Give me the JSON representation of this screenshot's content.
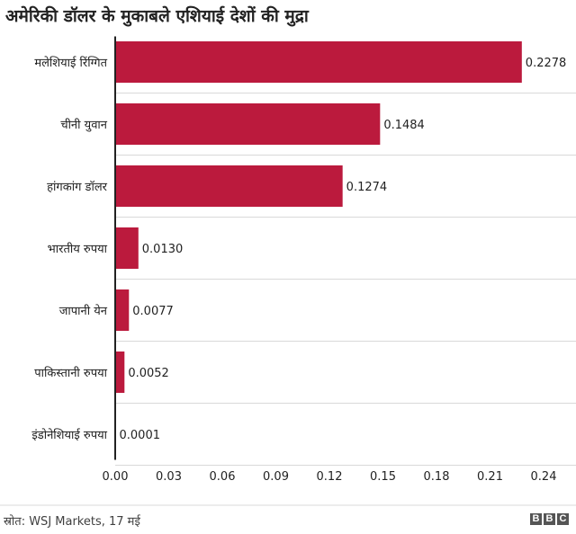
{
  "chart_data": {
    "type": "bar",
    "orientation": "horizontal",
    "title": "अमेरिकी डॉलर के मुकाबले एशियाई देशों की मुद्रा",
    "categories": [
      "मलेशियाई रिंग्गित",
      "चीनी युवान",
      "हांगकांग डॉलर",
      "भारतीय रुपया",
      "जापानी येन",
      "पाकिस्तानी रुपया",
      "इंडोनेशियाई रुपया"
    ],
    "values": [
      0.2278,
      0.1484,
      0.1274,
      0.013,
      0.0077,
      0.0052,
      0.0001
    ],
    "value_labels": [
      "0.2278",
      "0.1484",
      "0.1274",
      "0.0130",
      "0.0077",
      "0.0052",
      "0.0001"
    ],
    "x_ticks": [
      "0.00",
      "0.03",
      "0.06",
      "0.09",
      "0.12",
      "0.15",
      "0.18",
      "0.21",
      "0.24"
    ],
    "xlim": [
      0,
      0.24
    ],
    "xlabel": "",
    "ylabel": "",
    "grid": true,
    "bar_color": "#bb1a3d"
  },
  "footer": {
    "source": "स्रोत: WSJ Markets, 17 मई",
    "logo_letters": [
      "B",
      "B",
      "C"
    ]
  }
}
